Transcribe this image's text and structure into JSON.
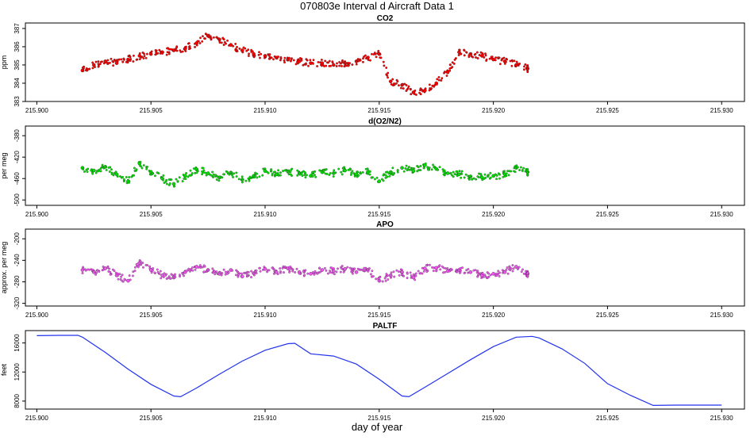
{
  "title": "070803e   Interval d Aircraft Data 1",
  "xlabel": "day of year",
  "chart_data": [
    {
      "type": "scatter",
      "title": "CO2",
      "ylabel": "ppm",
      "xlim": [
        215.8995,
        215.931
      ],
      "ylim": [
        383,
        387.3
      ],
      "xticks": [
        215.9,
        215.905,
        215.91,
        215.915,
        215.92,
        215.925,
        215.93
      ],
      "xtick_labels": [
        "215.900",
        "215.905",
        "215.910",
        "215.915",
        "215.920",
        "215.925",
        "215.930"
      ],
      "yticks": [
        383,
        384,
        385,
        386,
        387
      ],
      "ytick_labels": [
        "383",
        "384",
        "385",
        "386",
        "387"
      ],
      "color": "#ff0000",
      "x": [
        215.902,
        215.9025,
        215.903,
        215.9035,
        215.904,
        215.9045,
        215.905,
        215.9055,
        215.906,
        215.9065,
        215.907,
        215.9075,
        215.908,
        215.9085,
        215.909,
        215.9095,
        215.91,
        215.9105,
        215.911,
        215.9115,
        215.912,
        215.9125,
        215.913,
        215.9135,
        215.914,
        215.9145,
        215.915,
        215.9155,
        215.916,
        215.9165,
        215.917,
        215.9175,
        215.918,
        215.9185,
        215.919,
        215.9195,
        215.92,
        215.9205,
        215.921,
        215.9215
      ],
      "y": [
        384.7,
        385.0,
        385.2,
        385.1,
        385.3,
        385.5,
        385.6,
        385.7,
        385.8,
        385.9,
        386.2,
        386.6,
        386.4,
        386.1,
        385.8,
        385.6,
        385.5,
        385.4,
        385.3,
        385.2,
        385.1,
        385.1,
        385.0,
        385.1,
        385.2,
        385.4,
        385.6,
        384.1,
        383.9,
        383.5,
        383.6,
        384.0,
        384.6,
        385.7,
        385.6,
        385.5,
        385.3,
        385.2,
        385.0,
        384.8
      ]
    },
    {
      "type": "scatter",
      "title": "d(O2/N2)",
      "ylabel": "per meg",
      "xlim": [
        215.8995,
        215.931
      ],
      "ylim": [
        -510,
        -362
      ],
      "xticks": [
        215.9,
        215.905,
        215.91,
        215.915,
        215.92,
        215.925,
        215.93
      ],
      "xtick_labels": [
        "215.900",
        "215.905",
        "215.910",
        "215.915",
        "215.920",
        "215.925",
        "215.930"
      ],
      "yticks": [
        -500,
        -460,
        -420,
        -380
      ],
      "ytick_labels": [
        "-500",
        "-460",
        "-420",
        "-380"
      ],
      "color": "#00e000",
      "x": [
        215.902,
        215.9025,
        215.903,
        215.9035,
        215.904,
        215.9045,
        215.905,
        215.9055,
        215.906,
        215.9065,
        215.907,
        215.9075,
        215.908,
        215.9085,
        215.909,
        215.9095,
        215.91,
        215.9105,
        215.911,
        215.9115,
        215.912,
        215.9125,
        215.913,
        215.9135,
        215.914,
        215.9145,
        215.915,
        215.9155,
        215.916,
        215.9165,
        215.917,
        215.9175,
        215.918,
        215.9185,
        215.919,
        215.9195,
        215.92,
        215.9205,
        215.921,
        215.9215
      ],
      "y": [
        -440,
        -445,
        -438,
        -452,
        -465,
        -432,
        -448,
        -460,
        -470,
        -455,
        -443,
        -450,
        -458,
        -449,
        -462,
        -455,
        -446,
        -452,
        -447,
        -450,
        -455,
        -448,
        -450,
        -445,
        -452,
        -448,
        -465,
        -448,
        -440,
        -446,
        -435,
        -442,
        -450,
        -452,
        -456,
        -458,
        -455,
        -452,
        -440,
        -448
      ]
    },
    {
      "type": "scatter",
      "title": "APO",
      "ylabel": "approx. per meg",
      "xlim": [
        215.8995,
        215.931
      ],
      "ylim": [
        -325,
        -182
      ],
      "xticks": [
        215.9,
        215.905,
        215.91,
        215.915,
        215.92,
        215.925,
        215.93
      ],
      "xtick_labels": [
        "215.900",
        "215.905",
        "215.910",
        "215.915",
        "215.920",
        "215.925",
        "215.930"
      ],
      "yticks": [
        -320,
        -280,
        -240,
        -200
      ],
      "ytick_labels": [
        "-320",
        "-280",
        "-240",
        "-200"
      ],
      "color": "#ee55ee",
      "x": [
        215.902,
        215.9025,
        215.903,
        215.9035,
        215.904,
        215.9045,
        215.905,
        215.9055,
        215.906,
        215.9065,
        215.907,
        215.9075,
        215.908,
        215.9085,
        215.909,
        215.9095,
        215.91,
        215.9105,
        215.911,
        215.9115,
        215.912,
        215.9125,
        215.913,
        215.9135,
        215.914,
        215.9145,
        215.915,
        215.9155,
        215.916,
        215.9165,
        215.917,
        215.9175,
        215.918,
        215.9185,
        215.919,
        215.9195,
        215.92,
        215.9205,
        215.921,
        215.9215
      ],
      "y": [
        -258,
        -262,
        -255,
        -268,
        -278,
        -245,
        -258,
        -268,
        -272,
        -262,
        -252,
        -258,
        -265,
        -258,
        -270,
        -264,
        -256,
        -262,
        -255,
        -262,
        -265,
        -258,
        -260,
        -256,
        -262,
        -258,
        -278,
        -268,
        -262,
        -272,
        -255,
        -254,
        -260,
        -258,
        -262,
        -268,
        -265,
        -262,
        -252,
        -265
      ]
    },
    {
      "type": "line",
      "title": "PALTF",
      "ylabel": "feet",
      "xlim": [
        215.8995,
        215.931
      ],
      "ylim": [
        6900,
        17700
      ],
      "xticks": [
        215.9,
        215.905,
        215.91,
        215.915,
        215.92,
        215.925,
        215.93
      ],
      "xtick_labels": [
        "215.900",
        "215.905",
        "215.910",
        "215.915",
        "215.920",
        "215.925",
        "215.930"
      ],
      "yticks": [
        8000,
        12000,
        16000
      ],
      "ytick_labels": [
        "8000",
        "12000",
        "16000"
      ],
      "color": "#2233ee",
      "x": [
        215.9,
        215.901,
        215.9018,
        215.902,
        215.903,
        215.904,
        215.905,
        215.906,
        215.9063,
        215.907,
        215.908,
        215.909,
        215.91,
        215.911,
        215.9113,
        215.912,
        215.913,
        215.914,
        215.915,
        215.916,
        215.9163,
        215.917,
        215.918,
        215.919,
        215.92,
        215.921,
        215.9217,
        215.922,
        215.923,
        215.924,
        215.925,
        215.926,
        215.927,
        215.928,
        215.929,
        215.93
      ],
      "y": [
        17000,
        17050,
        17050,
        16800,
        14700,
        12400,
        10300,
        8700,
        8600,
        9800,
        11700,
        13500,
        15000,
        15900,
        15950,
        14500,
        14200,
        13100,
        11000,
        8700,
        8600,
        9900,
        11800,
        13700,
        15500,
        16800,
        16900,
        16700,
        15200,
        13200,
        10400,
        8800,
        7400,
        7450,
        7450,
        7450
      ]
    }
  ]
}
